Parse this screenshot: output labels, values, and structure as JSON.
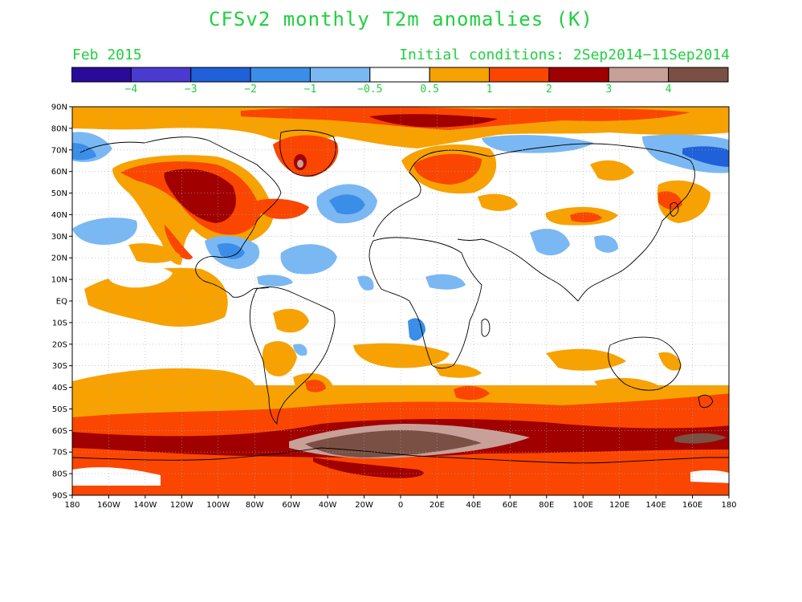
{
  "title": "CFSv2 monthly T2m anomalies (K)",
  "valid_month": "Feb 2015",
  "initial_conditions": "Initial conditions: 2Sep2014−11Sep2014",
  "colorbar": {
    "colors": [
      "#2a0a9a",
      "#4a3ad0",
      "#2060d8",
      "#3a8ee8",
      "#7ab8f4",
      "#ffffff",
      "#f7a200",
      "#fa4600",
      "#a00000",
      "#c8a098",
      "#7a5044"
    ],
    "labels": [
      "−4",
      "−3",
      "−2",
      "−1",
      "−0.5",
      "0.5",
      "1",
      "2",
      "3",
      "4"
    ]
  },
  "axes": {
    "lat_labels": [
      "90N",
      "80N",
      "70N",
      "60N",
      "50N",
      "40N",
      "30N",
      "20N",
      "10N",
      "EQ",
      "10S",
      "20S",
      "30S",
      "40S",
      "50S",
      "60S",
      "70S",
      "80S",
      "90S"
    ],
    "lon_labels": [
      "180",
      "160W",
      "140W",
      "120W",
      "100W",
      "80W",
      "60W",
      "40W",
      "20W",
      "0",
      "20E",
      "40E",
      "60E",
      "80E",
      "100E",
      "120E",
      "140E",
      "160E",
      "180"
    ]
  }
}
